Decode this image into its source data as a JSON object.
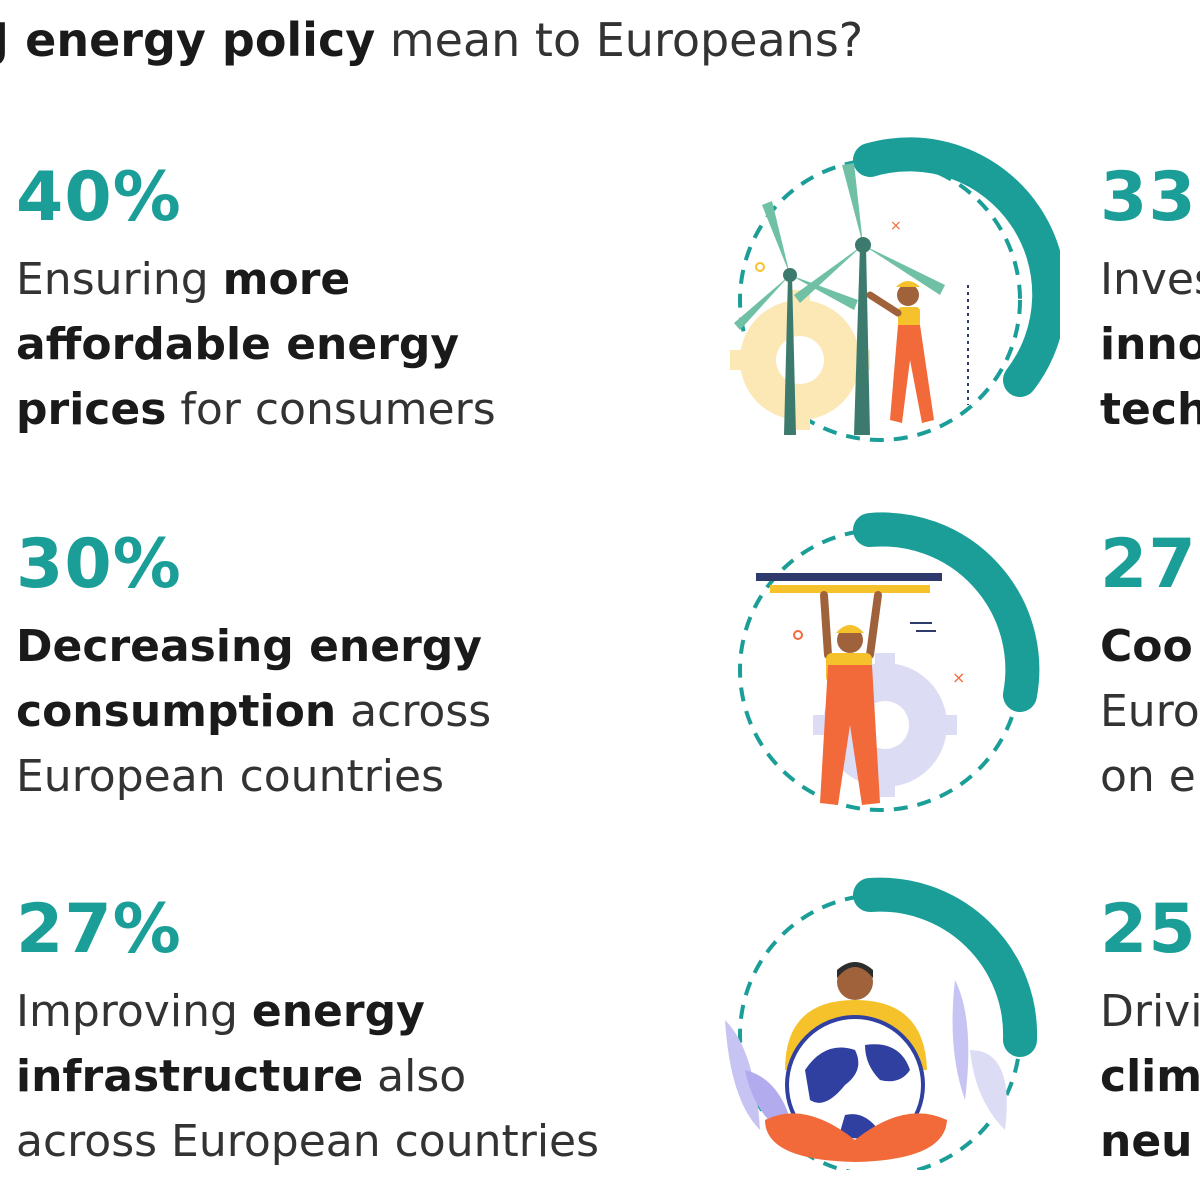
{
  "heading": {
    "bold": "J energy policy",
    "rest": "mean to Europeans?"
  },
  "colors": {
    "accent": "#1a9e97",
    "accent_light": "#86c9c0",
    "orange": "#f26a3a",
    "yellow": "#f5c22b",
    "gear": "#dcdcf5"
  },
  "left_items": [
    {
      "percent": "40%",
      "lines": [
        [
          {
            "t": "Ensuring ",
            "b": false
          },
          {
            "t": "more",
            "b": true
          }
        ],
        [
          {
            "t": "affordable energy",
            "b": true
          }
        ],
        [
          {
            "t": "prices",
            "b": true
          },
          {
            "t": " for consumers",
            "b": false
          }
        ]
      ]
    },
    {
      "percent": "30%",
      "lines": [
        [
          {
            "t": "Decreasing energy",
            "b": true
          }
        ],
        [
          {
            "t": "consumption",
            "b": true
          },
          {
            "t": " across",
            "b": false
          }
        ],
        [
          {
            "t": "European countries",
            "b": false
          }
        ]
      ]
    },
    {
      "percent": "27%",
      "lines": [
        [
          {
            "t": "Improving ",
            "b": false
          },
          {
            "t": "energy",
            "b": true
          }
        ],
        [
          {
            "t": "infrastructure",
            "b": true
          },
          {
            "t": " also",
            "b": false
          }
        ],
        [
          {
            "t": "across European countries",
            "b": false
          }
        ]
      ]
    }
  ],
  "right_items": [
    {
      "percent": "33",
      "lines": [
        "Inves",
        "inno",
        "tech"
      ],
      "bold": [
        false,
        true,
        true
      ]
    },
    {
      "percent": "27",
      "lines": [
        "Coo",
        "Euro",
        "on e"
      ],
      "bold": [
        true,
        false,
        false
      ]
    },
    {
      "percent": "25",
      "lines": [
        "Drivi",
        "clim",
        "neu"
      ],
      "bold": [
        false,
        true,
        true
      ]
    }
  ],
  "illustrations": [
    {
      "icon": "wind-turbines-worker-icon"
    },
    {
      "icon": "worker-lifting-bar-icon"
    },
    {
      "icon": "person-holding-globe-icon"
    }
  ]
}
